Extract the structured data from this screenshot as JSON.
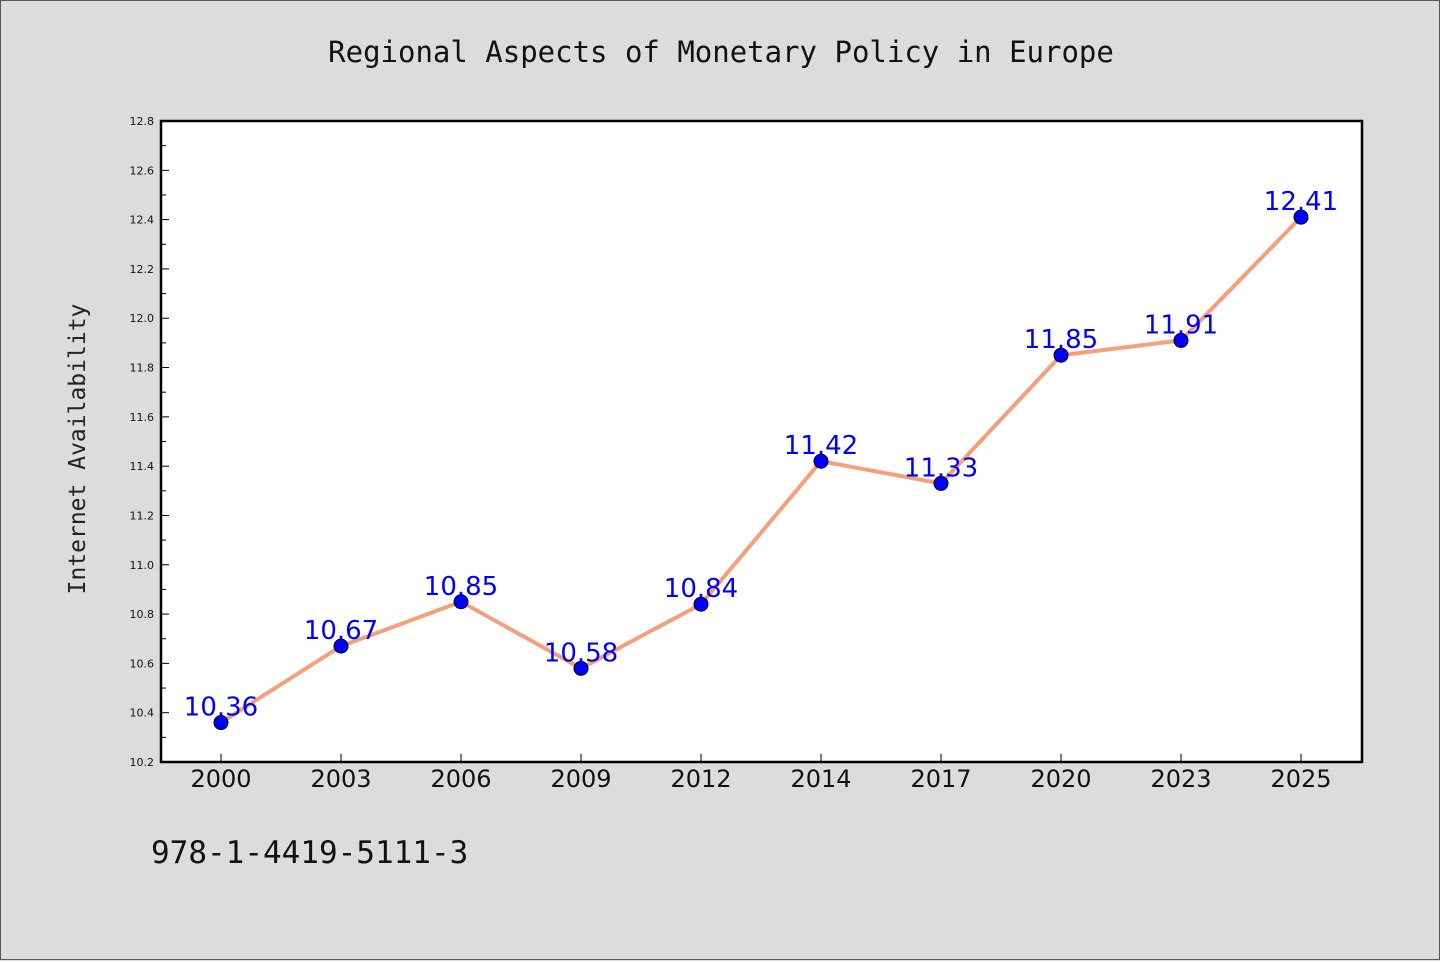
{
  "figure": {
    "isbn": "978-1-4419-5111-3"
  },
  "chart_data": {
    "type": "line",
    "title": "Regional Aspects of Monetary Policy in Europe",
    "xlabel": "",
    "ylabel": "Internet Availability",
    "categories": [
      "2000",
      "2003",
      "2006",
      "2009",
      "2012",
      "2014",
      "2017",
      "2020",
      "2023",
      "2025"
    ],
    "series": [
      {
        "values": [
          10.36,
          10.67,
          10.85,
          10.58,
          10.84,
          11.42,
          11.33,
          11.85,
          11.91,
          12.41
        ],
        "line_color": "#f4a07a",
        "marker_color": "#0000ff"
      }
    ],
    "data_labels": [
      "10.36",
      "10.67",
      "10.85",
      "10.58",
      "10.84",
      "11.42",
      "11.33",
      "11.85",
      "11.91",
      "12.41"
    ],
    "ylim": [
      10.2,
      12.8
    ],
    "yticks": [
      10.2,
      10.4,
      10.6,
      10.8,
      11.0,
      11.2,
      11.4,
      11.6,
      11.8,
      12.0,
      12.2,
      12.4,
      12.6,
      12.8
    ],
    "ytick_labels": [
      "10.2",
      "10.4",
      "10.6",
      "10.8",
      "11.0",
      "11.2",
      "11.4",
      "11.6",
      "11.8",
      "12.0",
      "12.2",
      "12.4",
      "12.6",
      "12.8"
    ],
    "grid": false,
    "legend": "none"
  }
}
